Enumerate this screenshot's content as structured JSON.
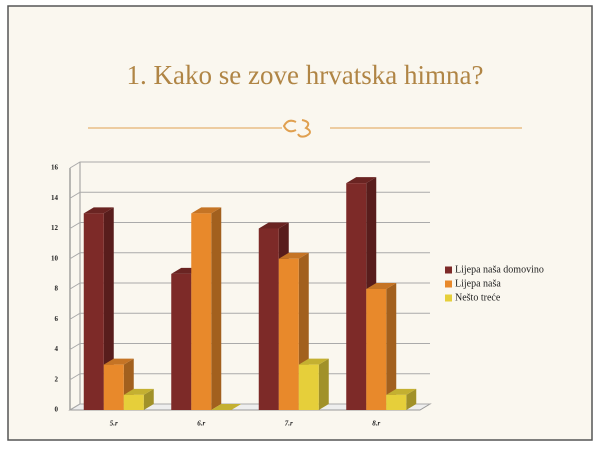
{
  "chart_data": {
    "type": "bar3d",
    "title": "1. Kako se zove hrvatska himna?",
    "categories": [
      "5.r",
      "6.r",
      "7.r",
      "8.r"
    ],
    "series": [
      {
        "name": "Lijepa naša domovino",
        "color": "#7d2a28",
        "values": [
          13,
          9,
          12,
          15
        ]
      },
      {
        "name": "Lijepa naša",
        "color": "#e8892b",
        "values": [
          3,
          13,
          10,
          8
        ]
      },
      {
        "name": "Nešto treće",
        "color": "#e6cf3a",
        "values": [
          1,
          0,
          3,
          1
        ]
      }
    ],
    "ylim": [
      0,
      16
    ],
    "yticks": [
      0,
      2,
      4,
      6,
      8,
      10,
      12,
      14,
      16
    ],
    "grid": true,
    "legend": "right"
  }
}
